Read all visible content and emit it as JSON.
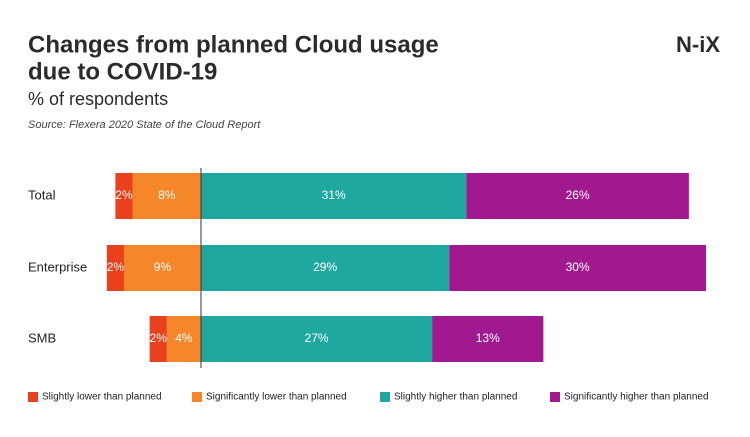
{
  "chart_data": {
    "type": "diverging_bar",
    "title": "Changes from planned Cloud usage",
    "title_line2": "due to COVID-19",
    "subtitle": "% of respondents",
    "source": "Source: Flexera 2020 State of the Cloud Report",
    "logo": "N-iX",
    "categories": [
      "Total",
      "Enterprise",
      "SMB"
    ],
    "series": [
      {
        "name": "Slightly lower than planned",
        "color": "#e8411b",
        "side": "left",
        "values": [
          2,
          2,
          2
        ],
        "value_labels": [
          "2%",
          "2%",
          "2%"
        ]
      },
      {
        "name": "Significantly lower than planned",
        "color": "#f5872a",
        "side": "left",
        "values": [
          8,
          9,
          4
        ],
        "value_labels": [
          "8%",
          "9%",
          "4%"
        ]
      },
      {
        "name": "Slightly higher than planned",
        "color": "#1fa8a0",
        "side": "right",
        "values": [
          31,
          29,
          27
        ],
        "value_labels": [
          "31%",
          "29%",
          "27%"
        ]
      },
      {
        "name": "Significantly higher than planned",
        "color": "#a0198f",
        "side": "right",
        "values": [
          26,
          30,
          13
        ],
        "value_labels": [
          "26%",
          "30%",
          "13%"
        ]
      }
    ]
  }
}
